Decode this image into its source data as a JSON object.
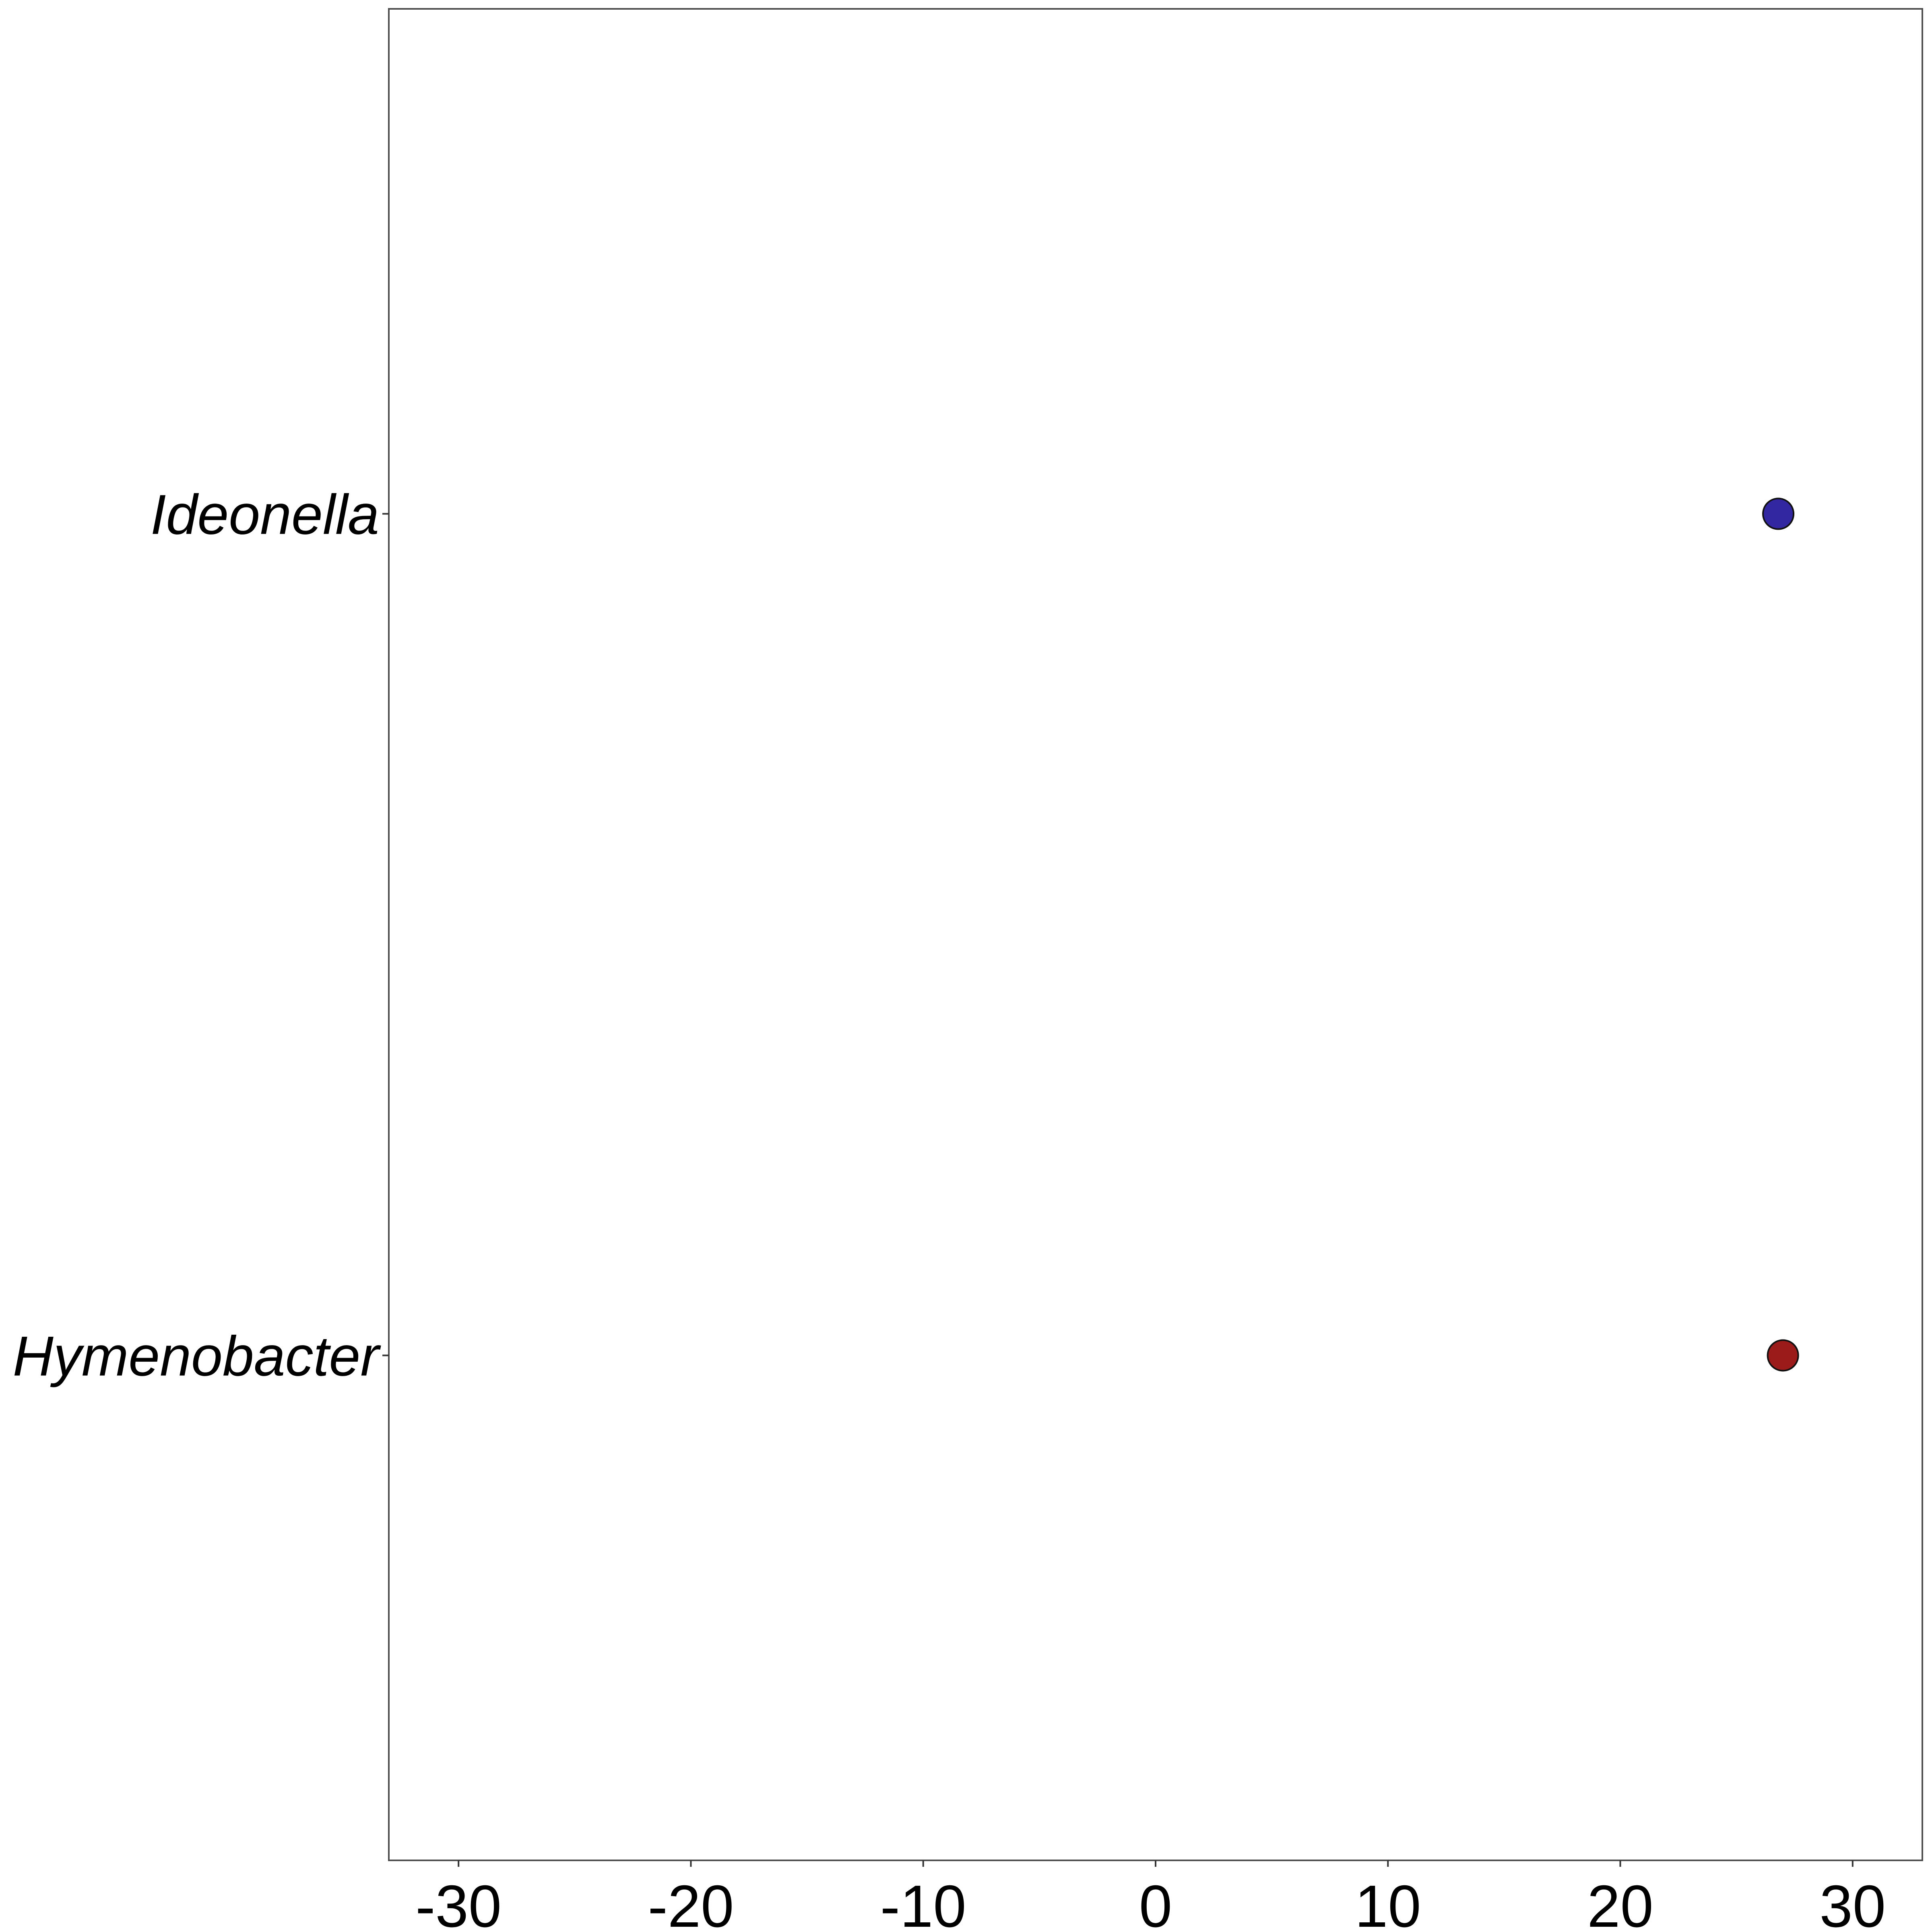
{
  "chart_data": {
    "type": "scatter",
    "title": "",
    "xlabel": "",
    "ylabel": "",
    "xlim": [
      -33,
      33
    ],
    "x_ticks": [
      -30,
      -20,
      -10,
      0,
      10,
      20,
      30
    ],
    "x_tick_labels": [
      "-30",
      "-20",
      "-10",
      "0",
      "10",
      "20",
      "30"
    ],
    "categories": [
      "Ideonella",
      "Hymenobacter"
    ],
    "grid": false,
    "legend": "none",
    "points": [
      {
        "category": "Ideonella",
        "x": 26.8,
        "color": "#3227A0"
      },
      {
        "category": "Hymenobacter",
        "x": 27.0,
        "color": "#9B1A1A"
      }
    ]
  }
}
